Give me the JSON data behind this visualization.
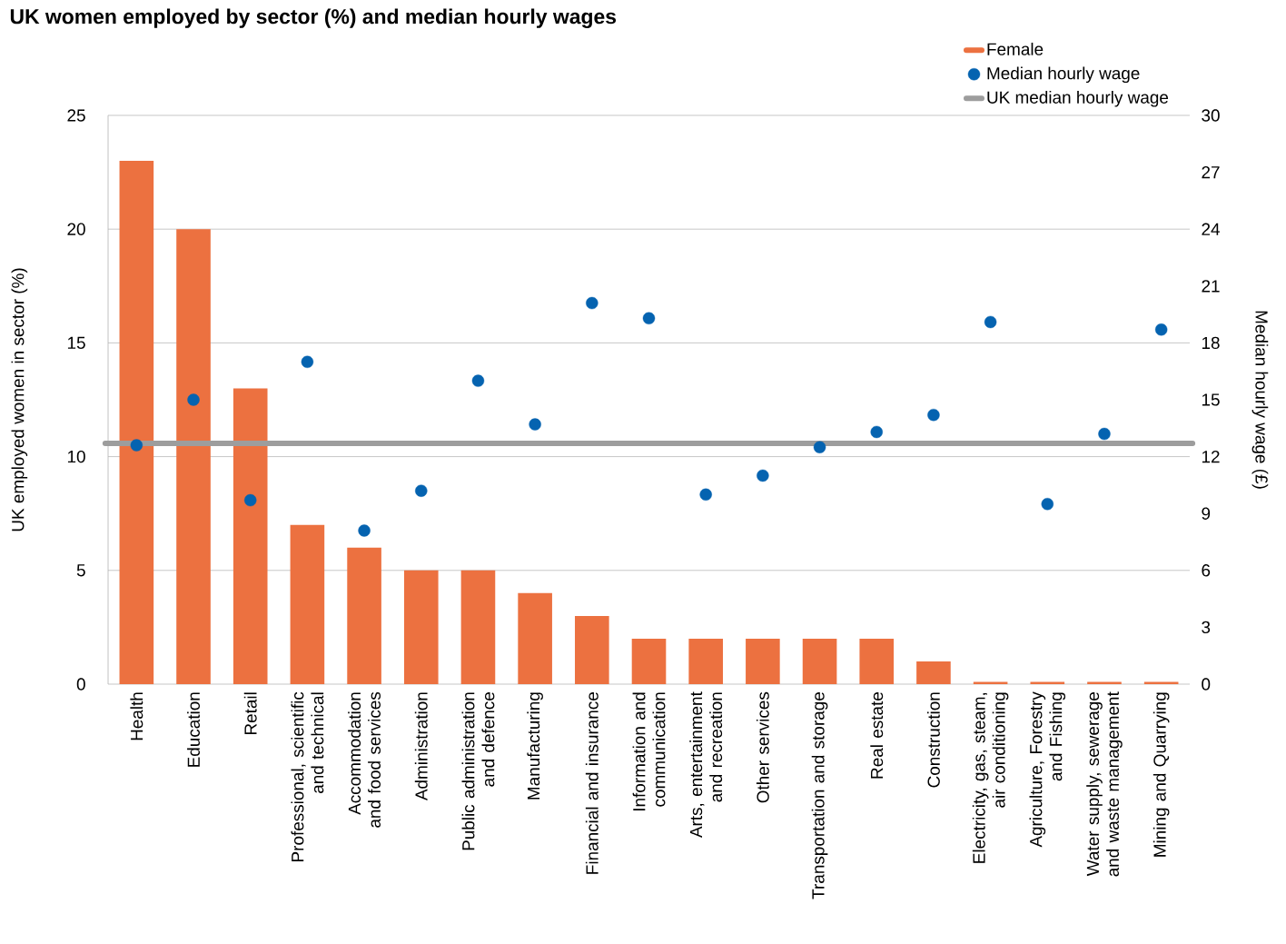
{
  "chart_data": {
    "type": "bar",
    "title": "UK women employed by sector (%) and median hourly wages",
    "ylabel": "UK employed women in sector (%)",
    "y2label": "Median hourly wage (£)",
    "categories": [
      "Health",
      "Education",
      "Retail",
      "Professional, scientific and technical",
      "Accommodation and food services",
      "Administration",
      "Public administration and defence",
      "Manufacturing",
      "Financial and insurance",
      "Information and communication",
      "Arts, entertainment and recreation",
      "Other services",
      "Transportation and storage",
      "Real estate",
      "Construction",
      "Electricity, gas, steam, air conditioning",
      "Agriculture, Forestry and Fishing",
      "Water supply, sewerage and waste management",
      "Mining and Quarrying"
    ],
    "series": [
      {
        "name": "Female",
        "color": "#ec7140",
        "values": [
          23,
          20,
          13,
          7,
          6,
          5,
          5,
          4,
          3,
          2,
          2,
          2,
          2,
          2,
          1,
          0.1,
          0.1,
          0.1,
          0.1
        ]
      },
      {
        "name": "Median hourly wage",
        "type": "scatter",
        "axis": "y2",
        "color": "#0563b0",
        "values": [
          12.6,
          15.0,
          9.7,
          17.0,
          8.1,
          10.2,
          16.0,
          13.7,
          20.1,
          19.3,
          10.0,
          11.0,
          12.5,
          13.3,
          14.2,
          19.1,
          9.5,
          13.2,
          18.7
        ]
      }
    ],
    "ylim": [
      0,
      25
    ],
    "yticks": [
      0,
      5,
      10,
      15,
      20,
      25
    ],
    "y2lim": [
      0,
      30
    ],
    "y2ticks": [
      0,
      3,
      6,
      9,
      12,
      15,
      18,
      21,
      24,
      27,
      30
    ],
    "grid": "y",
    "legend": "top right",
    "ref_lines": [
      {
        "axis": "y2",
        "value": 12.7,
        "label": "UK median hourly wage",
        "color": "#9d9d9d"
      }
    ]
  }
}
